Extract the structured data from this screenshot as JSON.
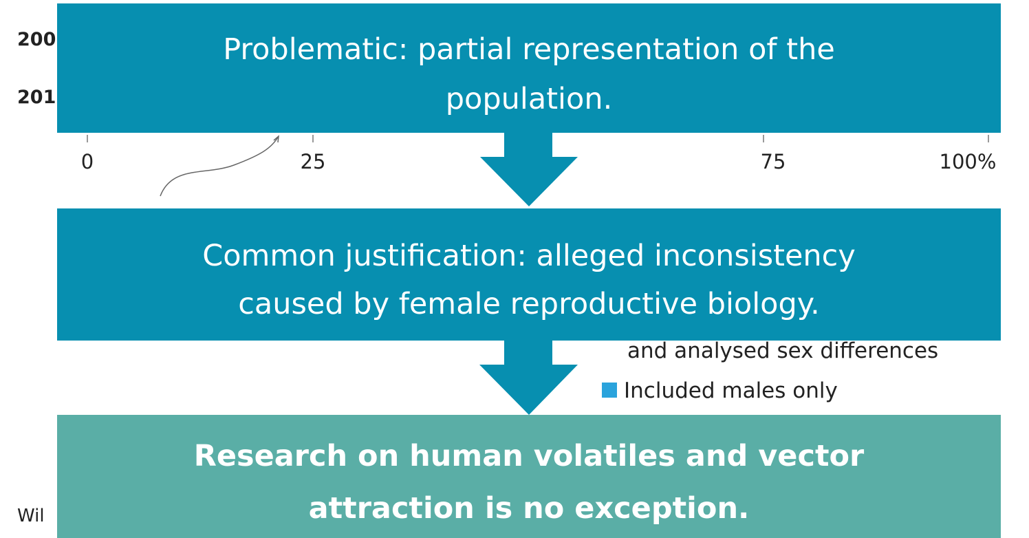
{
  "background": {
    "row_labels": [
      "200",
      "201"
    ],
    "axis_labels": [
      "0",
      "25",
      "75",
      "100%"
    ],
    "legend": [
      "and analysed sex differences",
      "Included males only"
    ],
    "source": "Wil"
  },
  "boxes": [
    {
      "lines": [
        "Problematic: partial representation of the",
        "population."
      ]
    },
    {
      "lines": [
        "Common justification: alleged inconsistency",
        "caused by female reproductive biology."
      ]
    },
    {
      "lines": [
        "Research on human volatiles and vector",
        "attraction is no exception."
      ]
    }
  ]
}
